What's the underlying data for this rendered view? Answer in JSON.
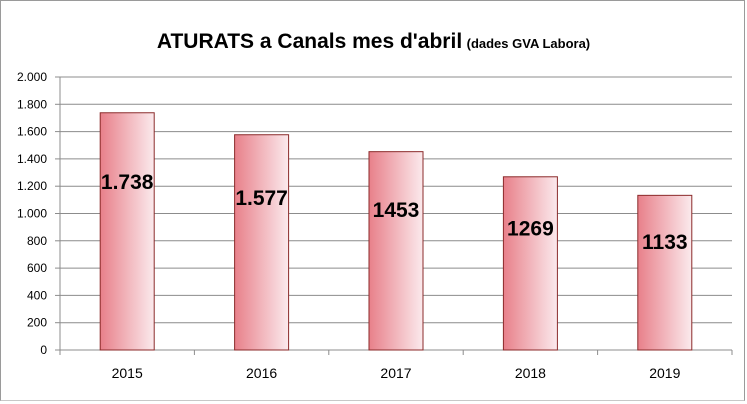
{
  "chart_data": {
    "type": "bar",
    "title": "ATURATS a Canals mes d'abril",
    "subtitle": "(dades GVA Labora)",
    "categories": [
      "2015",
      "2016",
      "2017",
      "2018",
      "2019"
    ],
    "values": [
      1738,
      1577,
      1453,
      1269,
      1133
    ],
    "data_labels": [
      "1.738",
      "1.577",
      "1453",
      "1269",
      "1133"
    ],
    "ylim": [
      0,
      2000
    ],
    "yticks": [
      0,
      200,
      400,
      600,
      800,
      1000,
      1200,
      1400,
      1600,
      1800,
      2000
    ],
    "ytick_labels": [
      "0",
      "200",
      "400",
      "600",
      "800",
      "1.000",
      "1.200",
      "1.400",
      "1.600",
      "1.800",
      "2.000"
    ],
    "grid": true,
    "legend": "none",
    "colors": {
      "bar_fill_dark": "#e8808a",
      "bar_fill_light": "#fbeaed",
      "bar_border": "#8b2a2a",
      "grid": "#8c8c8c"
    }
  }
}
